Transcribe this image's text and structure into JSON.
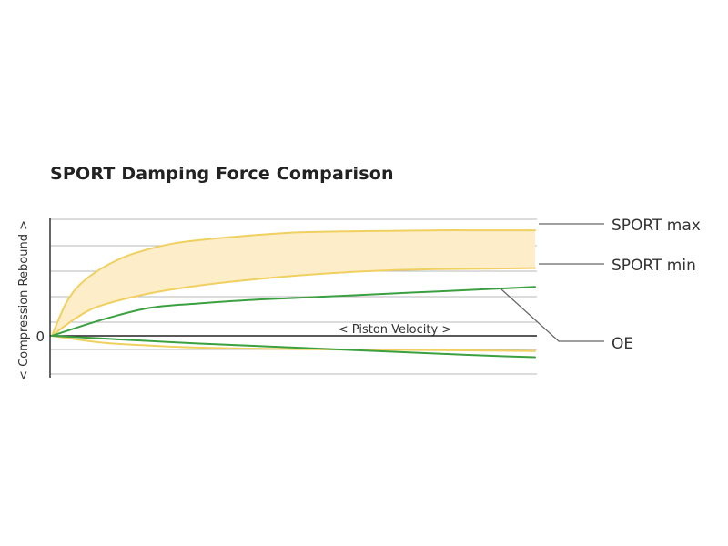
{
  "chart_data": {
    "type": "line",
    "title": "SPORT Damping Force Comparison",
    "xlabel": "< Piston Velocity >",
    "ylabel": "< Compression Rebound >",
    "y_zero_label": "0",
    "grid": true,
    "x_range": [
      0,
      1
    ],
    "y_range": [
      -1,
      1
    ],
    "series": [
      {
        "name": "SPORT max",
        "color": "#f0d060",
        "x": [
          0,
          0.03,
          0.06,
          0.1,
          0.15,
          0.2,
          0.25,
          0.3,
          0.4,
          0.5,
          0.6,
          0.7,
          0.8,
          0.9,
          1.0
        ],
        "y": [
          0,
          0.3,
          0.47,
          0.6,
          0.71,
          0.78,
          0.83,
          0.86,
          0.9,
          0.93,
          0.94,
          0.945,
          0.95,
          0.95,
          0.95
        ]
      },
      {
        "name": "SPORT min",
        "color": "#f0d060",
        "x": [
          0,
          0.05,
          0.1,
          0.2,
          0.3,
          0.4,
          0.5,
          0.6,
          0.7,
          0.8,
          0.9,
          1.0
        ],
        "y": [
          0,
          0.16,
          0.27,
          0.38,
          0.45,
          0.5,
          0.54,
          0.57,
          0.59,
          0.6,
          0.605,
          0.61
        ]
      },
      {
        "name": "OE",
        "color": "#3aa040",
        "x": [
          0,
          0.1,
          0.2,
          0.3,
          0.4,
          0.5,
          0.6,
          0.7,
          0.8,
          0.9,
          1.0
        ],
        "y": [
          0,
          0.14,
          0.25,
          0.29,
          0.32,
          0.34,
          0.36,
          0.38,
          0.4,
          0.42,
          0.44
        ]
      },
      {
        "name": "",
        "color": "#f0d060",
        "x": [
          0,
          0.1,
          0.2,
          0.3,
          0.4,
          0.5,
          0.6,
          0.7,
          0.8,
          0.9,
          1.0
        ],
        "y": [
          0,
          -0.13,
          -0.19,
          -0.23,
          -0.25,
          -0.26,
          -0.27,
          -0.275,
          -0.28,
          -0.29,
          -0.3
        ]
      },
      {
        "name": "",
        "color": "#3aa040",
        "x": [
          0,
          0.1,
          0.2,
          0.3,
          0.4,
          0.5,
          0.6,
          0.7,
          0.8,
          0.9,
          1.0
        ],
        "y": [
          0,
          -0.05,
          -0.1,
          -0.15,
          -0.19,
          -0.23,
          -0.27,
          -0.31,
          -0.35,
          -0.39,
          -0.42
        ]
      }
    ],
    "band": {
      "between": [
        "SPORT max",
        "SPORT min"
      ],
      "color": "#fdeec9"
    },
    "legend_labels": [
      "SPORT max",
      "SPORT min",
      "OE"
    ]
  }
}
